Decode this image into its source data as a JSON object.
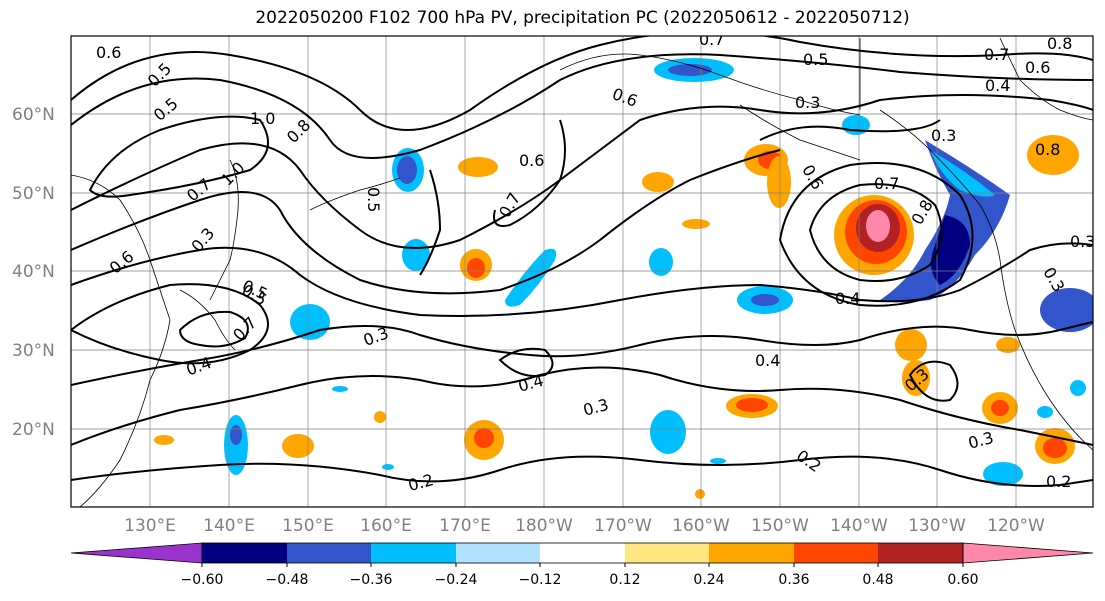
{
  "title": "2022050200 F102 700 hPa PV, precipitation PC (2022050612 - 2022050712)",
  "map": {
    "lat_labels": [
      "60°N",
      "50°N",
      "40°N",
      "30°N",
      "20°N"
    ],
    "lon_labels": [
      "130°E",
      "140°E",
      "150°E",
      "160°E",
      "170°E",
      "180°W",
      "170°W",
      "160°W",
      "150°W",
      "140°W",
      "130°W",
      "120°W"
    ],
    "contour_labels": [
      "0.6",
      "0.5",
      "0.5",
      "1.0",
      "0.8",
      "0.7",
      "1.0",
      "0.3",
      "0.6",
      "0.6",
      "0.5",
      "0.5",
      "0.7",
      "0.6",
      "0.7",
      "0.8",
      "0.5",
      "0.7",
      "0.6",
      "0.4",
      "0.3",
      "0.3",
      "0.8",
      "0.6",
      "0.7",
      "0.8",
      "0.4",
      "0.3",
      "0.4",
      "0.3",
      "0.4",
      "0.3",
      "0.3",
      "0.3",
      "0.2",
      "0.2",
      "0.2",
      "0.3",
      "0.4",
      "0.5",
      "0.7"
    ]
  },
  "colorbar": {
    "tick_labels": [
      "−0.60",
      "−0.48",
      "−0.36",
      "−0.24",
      "−0.12",
      "0.12",
      "0.24",
      "0.36",
      "0.48",
      "0.60"
    ],
    "colors": [
      "#9933cc",
      "#000080",
      "#3355cc",
      "#00bfff",
      "#b0e2ff",
      "#ffffff",
      "#ffe680",
      "#ffa500",
      "#ff4500",
      "#b22222",
      "#ff88aa"
    ]
  }
}
